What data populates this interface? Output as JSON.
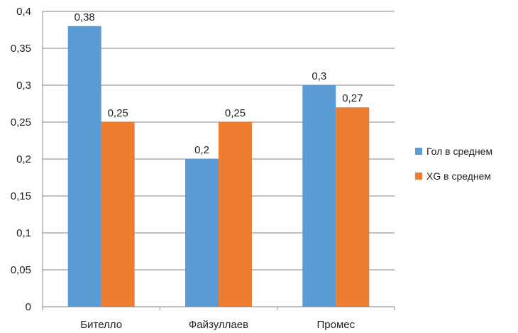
{
  "chart_data": {
    "type": "bar",
    "categories": [
      "Бителло",
      "Файзуллаев",
      "Промес"
    ],
    "series": [
      {
        "name": "Гол в среднем",
        "values": [
          0.38,
          0.2,
          0.3
        ],
        "labels": [
          "0,38",
          "0,2",
          "0,3"
        ],
        "color": "#5B9BD5"
      },
      {
        "name": "XG в среднем",
        "values": [
          0.25,
          0.25,
          0.27
        ],
        "labels": [
          "0,25",
          "0,25",
          "0,27"
        ],
        "color": "#ED7D31"
      }
    ],
    "y_ticks": [
      {
        "value": 0,
        "label": "0"
      },
      {
        "value": 0.05,
        "label": "0,05"
      },
      {
        "value": 0.1,
        "label": "0,1"
      },
      {
        "value": 0.15,
        "label": "0,15"
      },
      {
        "value": 0.2,
        "label": "0,2"
      },
      {
        "value": 0.25,
        "label": "0,25"
      },
      {
        "value": 0.3,
        "label": "0,3"
      },
      {
        "value": 0.35,
        "label": "0,35"
      },
      {
        "value": 0.4,
        "label": "0,4"
      }
    ],
    "ylim": [
      0,
      0.4
    ],
    "grid": true,
    "legend_position": "right",
    "title": "",
    "xlabel": "",
    "ylabel": ""
  }
}
